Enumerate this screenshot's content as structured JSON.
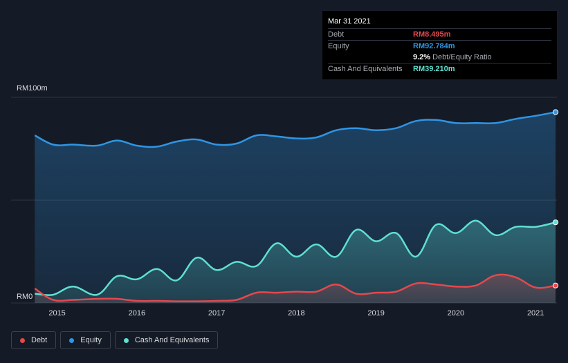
{
  "colors": {
    "debt": "#e5484d",
    "equity": "#2f95e5",
    "cash": "#5fe0d0",
    "grid": "#2e3440"
  },
  "tooltip": {
    "date": "Mar 31 2021",
    "rows": [
      {
        "label": "Debt",
        "value": "RM8.495m"
      },
      {
        "label": "Equity",
        "value": "RM92.784m"
      },
      {
        "label": "Cash And Equivalents",
        "value": "RM39.210m"
      }
    ],
    "ratio_value": "9.2%",
    "ratio_label": "Debt/Equity Ratio"
  },
  "legend": [
    {
      "label": "Debt",
      "color_key": "debt"
    },
    {
      "label": "Equity",
      "color_key": "equity"
    },
    {
      "label": "Cash And Equivalents",
      "color_key": "cash"
    }
  ],
  "chart_data": {
    "type": "area",
    "ylim": [
      0,
      100
    ],
    "y_tick_labels": [
      {
        "value": 100,
        "label": "RM100m"
      },
      {
        "value": 0,
        "label": "RM0"
      }
    ],
    "xlim": [
      2014.7,
      2021.25
    ],
    "x_ticks": [
      2015,
      2016,
      2017,
      2018,
      2019,
      2020,
      2021
    ],
    "x_tick_labels": [
      "2015",
      "2016",
      "2017",
      "2018",
      "2019",
      "2020",
      "2021"
    ],
    "grid": true,
    "legend_position": "bottom-left",
    "series": [
      {
        "name": "Equity",
        "color_key": "equity",
        "x": [
          2014.72,
          2014.95,
          2015.2,
          2015.5,
          2015.75,
          2016.0,
          2016.25,
          2016.5,
          2016.75,
          2017.0,
          2017.25,
          2017.5,
          2017.75,
          2018.0,
          2018.25,
          2018.5,
          2018.75,
          2019.0,
          2019.25,
          2019.5,
          2019.75,
          2020.0,
          2020.25,
          2020.5,
          2020.75,
          2021.0,
          2021.25
        ],
        "values": [
          81.5,
          77.0,
          77.0,
          76.5,
          79.0,
          76.5,
          76.0,
          78.5,
          79.5,
          77.0,
          77.5,
          81.5,
          81.0,
          80.0,
          80.5,
          84.0,
          85.0,
          84.0,
          85.0,
          88.5,
          89.0,
          87.5,
          87.5,
          87.5,
          89.5,
          91.0,
          92.8
        ]
      },
      {
        "name": "Cash And Equivalents",
        "color_key": "cash",
        "x": [
          2014.72,
          2014.95,
          2015.2,
          2015.5,
          2015.75,
          2016.0,
          2016.25,
          2016.5,
          2016.75,
          2017.0,
          2017.25,
          2017.5,
          2017.75,
          2018.0,
          2018.25,
          2018.5,
          2018.75,
          2019.0,
          2019.25,
          2019.5,
          2019.75,
          2020.0,
          2020.25,
          2020.5,
          2020.75,
          2021.0,
          2021.25
        ],
        "values": [
          4.5,
          4.0,
          8.0,
          4.0,
          13.0,
          11.5,
          16.5,
          11.0,
          22.0,
          16.0,
          20.0,
          18.0,
          29.0,
          22.5,
          28.5,
          22.5,
          35.5,
          30.0,
          34.0,
          22.5,
          38.0,
          34.0,
          40.0,
          33.0,
          37.0,
          37.0,
          39.2
        ]
      },
      {
        "name": "Debt",
        "color_key": "debt",
        "x": [
          2014.72,
          2014.95,
          2015.2,
          2015.5,
          2015.75,
          2016.0,
          2016.25,
          2016.5,
          2016.75,
          2017.0,
          2017.25,
          2017.5,
          2017.75,
          2018.0,
          2018.25,
          2018.5,
          2018.75,
          2019.0,
          2019.25,
          2019.5,
          2019.75,
          2020.0,
          2020.25,
          2020.5,
          2020.75,
          2021.0,
          2021.25
        ],
        "values": [
          7.0,
          1.5,
          1.5,
          2.0,
          2.0,
          1.0,
          1.0,
          0.8,
          0.8,
          1.0,
          1.5,
          5.0,
          5.0,
          5.5,
          5.5,
          9.0,
          4.5,
          5.0,
          5.5,
          9.5,
          9.0,
          8.0,
          8.5,
          13.5,
          12.5,
          7.5,
          8.5
        ]
      }
    ]
  }
}
